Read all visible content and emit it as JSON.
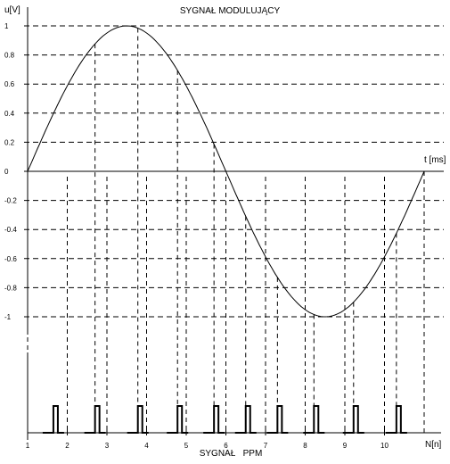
{
  "chart_data": [
    {
      "type": "line",
      "title": "SYGNAŁ MODULUJĄCY",
      "ylabel": "u[V]",
      "xlabel": "t [ms]",
      "ylim": [
        -1,
        1
      ],
      "yticks": [
        "1",
        "0.8",
        "0.6",
        "0.4",
        "0.2",
        "0",
        "-0.2",
        "-0.4",
        "-0.6",
        "-0.8",
        "-1"
      ],
      "grid": true,
      "series": [
        {
          "x": [
            0,
            0.1,
            0.2,
            0.3,
            0.4,
            0.5,
            0.6,
            0.7,
            0.8,
            0.9,
            1.0
          ],
          "y": [
            0,
            0.59,
            0.95,
            0.95,
            0.59,
            0,
            -0.59,
            -0.95,
            -0.95,
            -0.59,
            0
          ]
        }
      ],
      "samples_y": [
        0.59,
        0.95,
        0.95,
        0.59,
        0,
        -0.59,
        -0.95,
        -0.95,
        -0.59
      ]
    },
    {
      "type": "bar",
      "title": "SYGNAŁ   PPM",
      "xlabel": "N[n]",
      "categories": [
        "1",
        "2",
        "3",
        "4",
        "5",
        "6",
        "7",
        "8",
        "9",
        "10"
      ],
      "pulse_offsets": [
        0.65,
        0.7,
        0.78,
        0.78,
        0.7,
        0.5,
        0.3,
        0.22,
        0.22,
        0.3
      ]
    }
  ]
}
